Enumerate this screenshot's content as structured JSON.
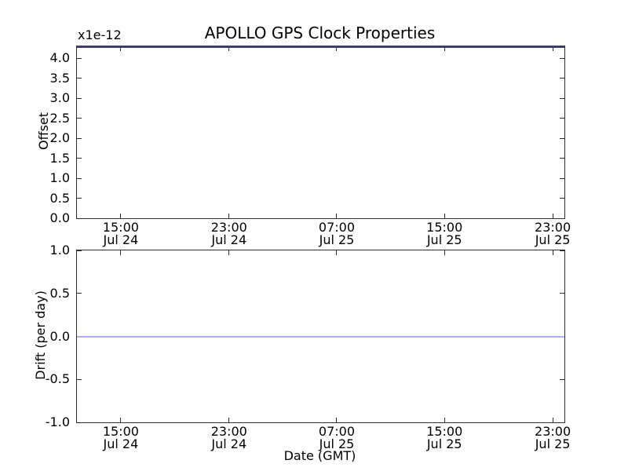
{
  "figure": {
    "background": "#ffffff",
    "spine_color": "#2f2f2f",
    "text_color": "#000000"
  },
  "chart_data": [
    {
      "type": "line",
      "title": "APOLLO GPS Clock Properties",
      "ylabel": "Offset",
      "y_scale_label": "x1e-12",
      "xlabel": "",
      "ylim": [
        0.0,
        4.3
      ],
      "ytick_values": [
        4.0,
        3.5,
        3.0,
        2.5,
        2.0,
        1.5,
        1.0,
        0.5,
        0.0
      ],
      "ytick_labels": [
        "4.0",
        "3.5",
        "3.0",
        "2.5",
        "2.0",
        "1.5",
        "1.0",
        "0.5",
        "0.0"
      ],
      "xticks": [
        {
          "frac": 0.09,
          "lines": [
            "15:00",
            "Jul 24"
          ]
        },
        {
          "frac": 0.312,
          "lines": [
            "23:00",
            "Jul 24"
          ]
        },
        {
          "frac": 0.533,
          "lines": [
            "07:00",
            "Jul 25"
          ]
        },
        {
          "frac": 0.754,
          "lines": [
            "15:00",
            "Jul 25"
          ]
        },
        {
          "frac": 0.976,
          "lines": [
            "23:00",
            "Jul 25"
          ]
        }
      ],
      "x_axis": "time (GMT), Jul 24 ~12:00 to Jul 25 ~24:00, major ticks every 8 hours",
      "grid": false,
      "legend": null,
      "series": [
        {
          "name": "Offset",
          "constant_y": 4.3,
          "units": "x1e-12",
          "note": "flat line drawn along the top edge of the axes (blends with top spine as dark navy)",
          "color": "#3c3c66",
          "thickness_px": 3
        }
      ]
    },
    {
      "type": "line",
      "title": "",
      "ylabel": "Drift (per day)",
      "y_scale_label": "",
      "xlabel": "Date (GMT)",
      "ylim": [
        -1.0,
        1.0
      ],
      "ytick_values": [
        1.0,
        0.5,
        0.0,
        -0.5,
        -1.0
      ],
      "ytick_labels": [
        "1.0",
        "0.5",
        "0.0",
        "-0.5",
        "-1.0"
      ],
      "xticks": [
        {
          "frac": 0.09,
          "lines": [
            "15:00",
            "Jul 24"
          ]
        },
        {
          "frac": 0.312,
          "lines": [
            "23:00",
            "Jul 24"
          ]
        },
        {
          "frac": 0.533,
          "lines": [
            "07:00",
            "Jul 25"
          ]
        },
        {
          "frac": 0.754,
          "lines": [
            "15:00",
            "Jul 25"
          ]
        },
        {
          "frac": 0.976,
          "lines": [
            "23:00",
            "Jul 25"
          ]
        }
      ],
      "x_axis": "time (GMT), Jul 24 ~12:00 to Jul 25 ~24:00, major ticks every 8 hours",
      "grid": false,
      "legend": null,
      "series": [
        {
          "name": "Drift",
          "constant_y": 0.0,
          "units": "per day",
          "note": "flat light periwinkle-blue line across full width at 0.0",
          "color": "#a9aff2",
          "thickness_px": 2
        }
      ]
    }
  ]
}
